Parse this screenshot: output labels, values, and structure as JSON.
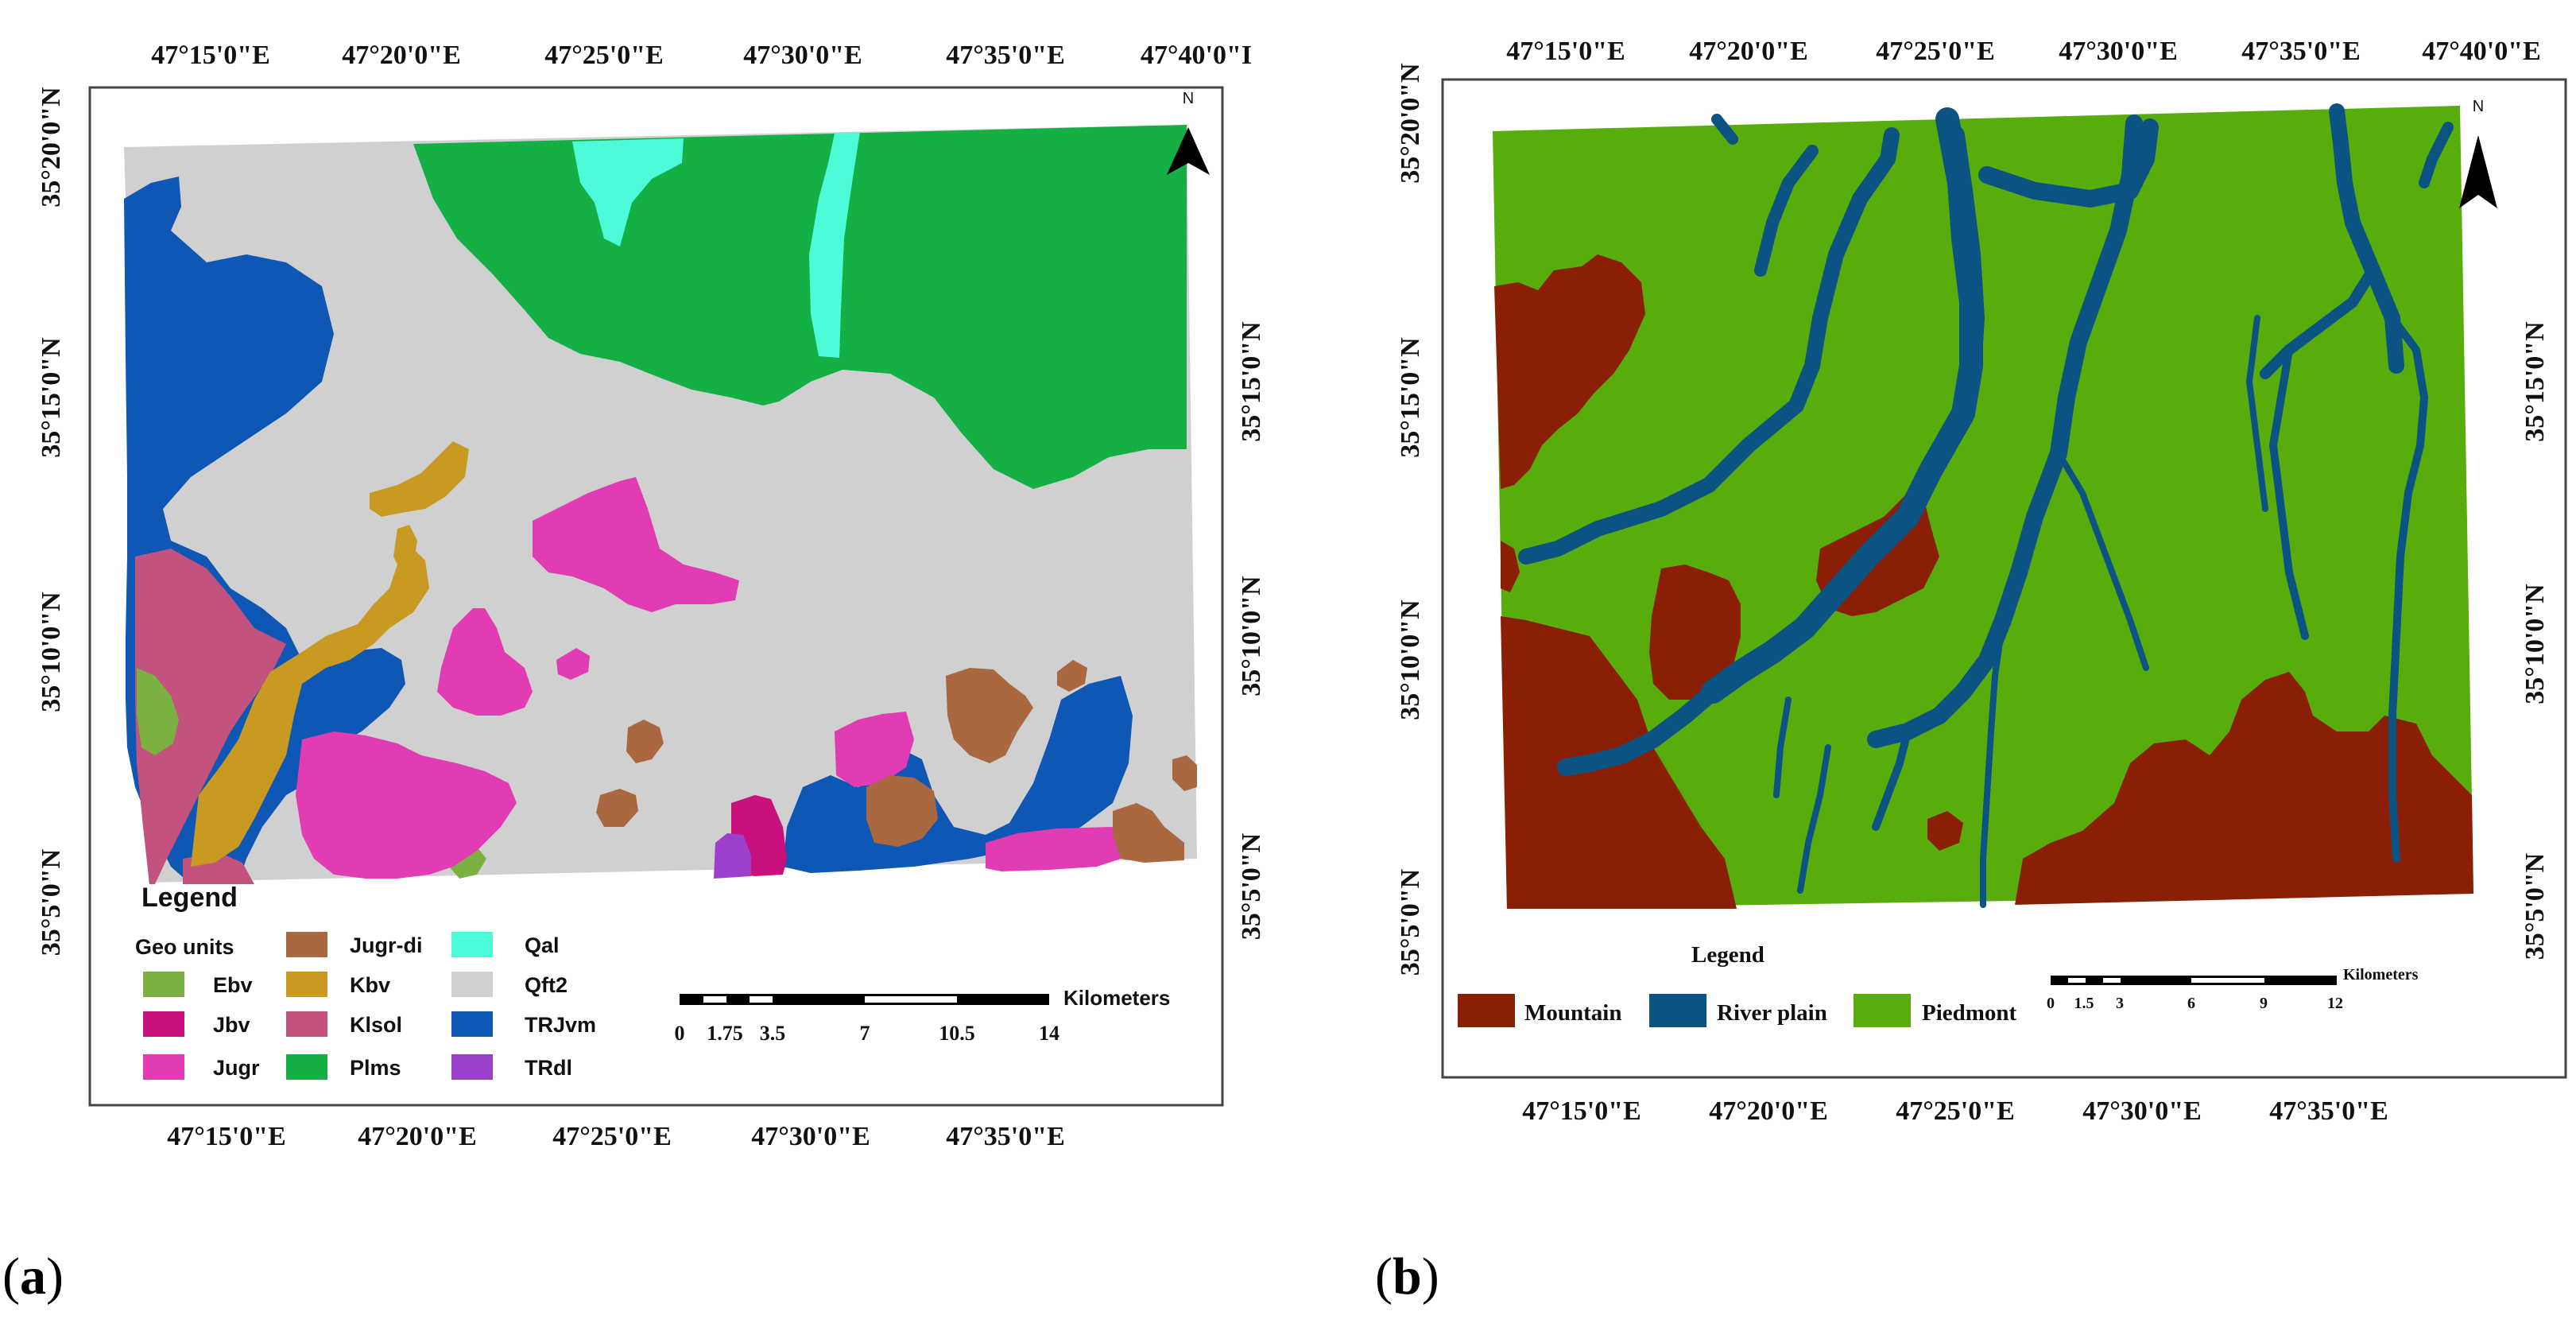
{
  "panel_a": {
    "label_open": "(",
    "label_letter": "a",
    "label_close": ")",
    "top_ticks": [
      "47°15'0\"E",
      "47°20'0\"E",
      "47°25'0\"E",
      "47°30'0\"E",
      "47°35'0\"E",
      "47°40'0\"I"
    ],
    "bottom_ticks": [
      "47°15'0\"E",
      "47°20'0\"E",
      "47°25'0\"E",
      "47°30'0\"E",
      "47°35'0\"E"
    ],
    "left_ticks": [
      "35°20'0\"N",
      "35°15'0\"N",
      "35°10'0\"N",
      "35°5'0\"N"
    ],
    "right_ticks": [
      "35°15'0\"N",
      "35°10'0\"N",
      "35°5'0\"N"
    ],
    "legend": {
      "title": "Legend",
      "subtitle": "Geo units",
      "items": [
        {
          "label": "Ebv",
          "color": "#7bb043"
        },
        {
          "label": "Jbv",
          "color": "#c8117d"
        },
        {
          "label": "Jugr",
          "color": "#e23cb4"
        },
        {
          "label": "Jugr-di",
          "color": "#aa6840"
        },
        {
          "label": "Kbv",
          "color": "#c89a21"
        },
        {
          "label": "Klsol",
          "color": "#c4527f"
        },
        {
          "label": "Plms",
          "color": "#14b045"
        },
        {
          "label": "Qal",
          "color": "#4dfbd9"
        },
        {
          "label": "Qft2",
          "color": "#d0d0d0"
        },
        {
          "label": "TRJvm",
          "color": "#0f57b5"
        },
        {
          "label": "TRdl",
          "color": "#9b3fcc"
        }
      ]
    },
    "scale": {
      "unit": "Kilometers",
      "labels": [
        "0",
        "1.75",
        "3.5",
        "7",
        "10.5",
        "14"
      ]
    },
    "north": "N"
  },
  "panel_b": {
    "label_open": "(",
    "label_letter": "b",
    "label_close": ")",
    "top_ticks": [
      "47°15'0\"E",
      "47°20'0\"E",
      "47°25'0\"E",
      "47°30'0\"E",
      "47°35'0\"E",
      "47°40'0\"E"
    ],
    "bottom_ticks": [
      "47°15'0\"E",
      "47°20'0\"E",
      "47°25'0\"E",
      "47°30'0\"E",
      "47°35'0\"E"
    ],
    "left_ticks": [
      "35°20'0\"N",
      "35°15'0\"N",
      "35°10'0\"N",
      "35°5'0\"N"
    ],
    "right_ticks": [
      "35°15'0\"N",
      "35°10'0\"N",
      "35°5'0\"N"
    ],
    "legend": {
      "title": "Legend",
      "items": [
        {
          "label": "Mountain",
          "color": "#8b1f05"
        },
        {
          "label": "River plain",
          "color": "#0b5382"
        },
        {
          "label": "Piedmont",
          "color": "#58ac0c"
        }
      ]
    },
    "scale": {
      "unit": "Kilometers",
      "labels": [
        "0",
        "1.5",
        "3",
        "6",
        "9",
        "12"
      ]
    },
    "north": "N"
  }
}
